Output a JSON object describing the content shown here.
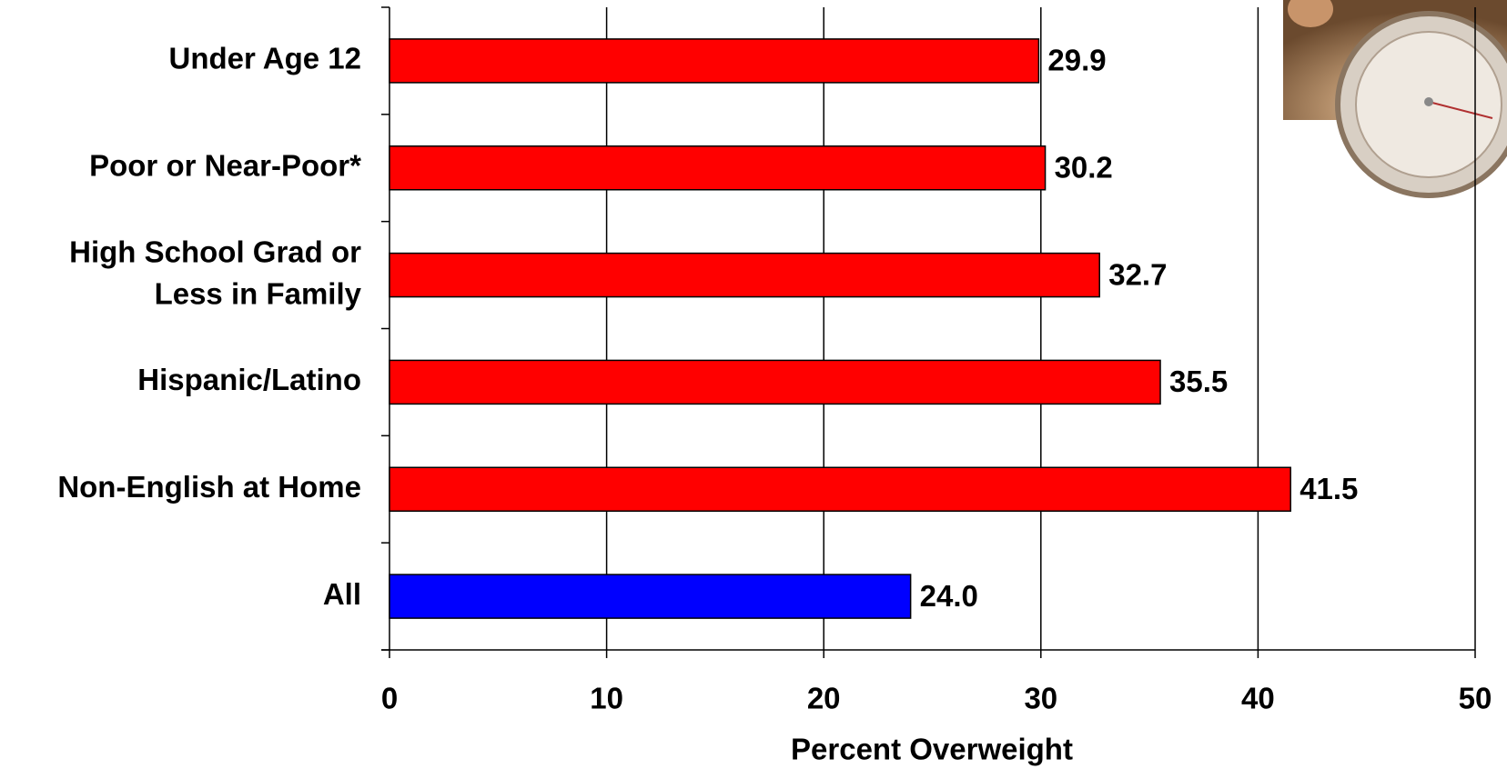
{
  "chart_data": {
    "type": "bar",
    "orientation": "horizontal",
    "categories": [
      "Under Age 12",
      "Poor or Near-Poor*",
      "High School Grad or\nLess in Family",
      "Hispanic/Latino",
      "Non-English at Home",
      "All"
    ],
    "values": [
      29.9,
      30.2,
      32.7,
      35.5,
      41.5,
      24.0
    ],
    "value_labels": [
      "29.9",
      "30.2",
      "32.7",
      "35.5",
      "41.5",
      "24.0"
    ],
    "colors": [
      "#ff0000",
      "#ff0000",
      "#ff0000",
      "#ff0000",
      "#ff0000",
      "#0000ff"
    ],
    "xlabel": "Percent Overweight",
    "xlim": [
      0,
      50
    ],
    "xticks": [
      0,
      10,
      20,
      30,
      40,
      50
    ],
    "grid": true
  }
}
